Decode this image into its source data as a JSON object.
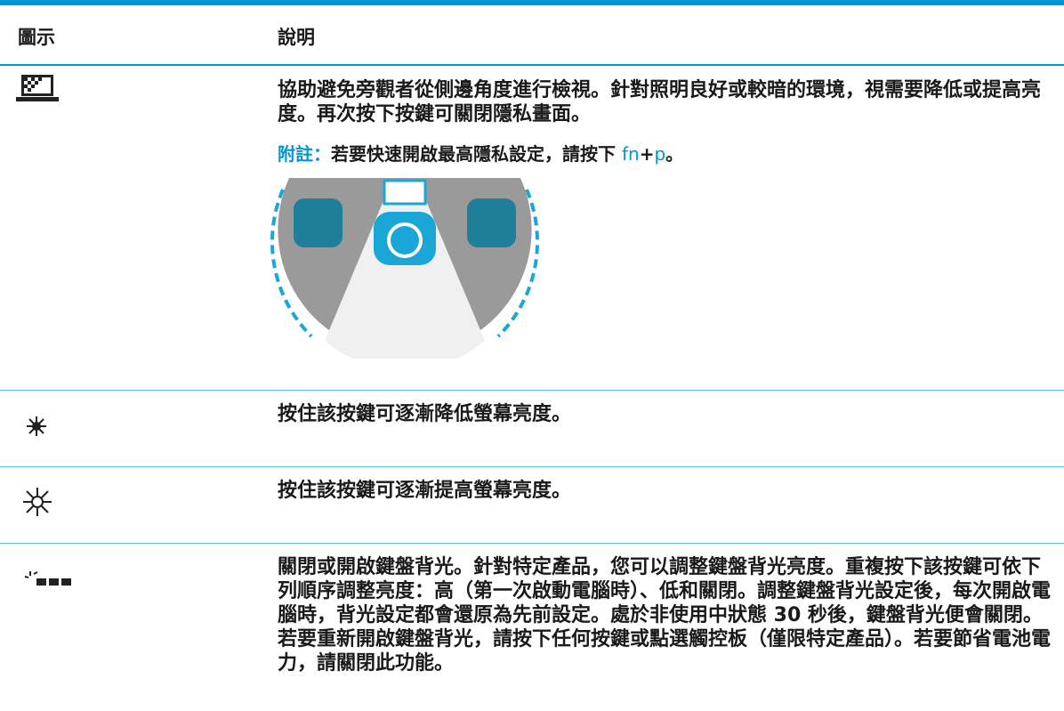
{
  "table": {
    "headers": [
      "圖示",
      "說明"
    ],
    "rows": [
      {
        "description": "協助避免旁觀者從側邊角度進行檢視。針對照明良好或較暗的環境，視需要降低或提高亮度。再次按下按鍵可關閉隱私畫面。",
        "note": {
          "label": "附註：",
          "text": "若要快速開啟最高隱私設定，請按下 ",
          "key1": "fn",
          "plus": "+",
          "key2": "p",
          "end": "。"
        }
      },
      {
        "description": "按住該按鍵可逐漸降低螢幕亮度。"
      },
      {
        "description": "按住該按鍵可逐漸提高螢幕亮度。"
      },
      {
        "description": "關閉或開啟鍵盤背光。針對特定產品，您可以調整鍵盤背光亮度。重複按下該按鍵可依下列順序調整亮度：高（第一次啟動電腦時）、低和關閉。調整鍵盤背光設定後，每次開啟電腦時，背光設定都會還原為先前設定。處於非使用中狀態 30 秒後，鍵盤背光便會關閉。若要重新開啟鍵盤背光，請按下任何按鍵或點選觸控板（僅限特定產品）。若要節省電池電力，請關閉此功能。"
      }
    ]
  }
}
